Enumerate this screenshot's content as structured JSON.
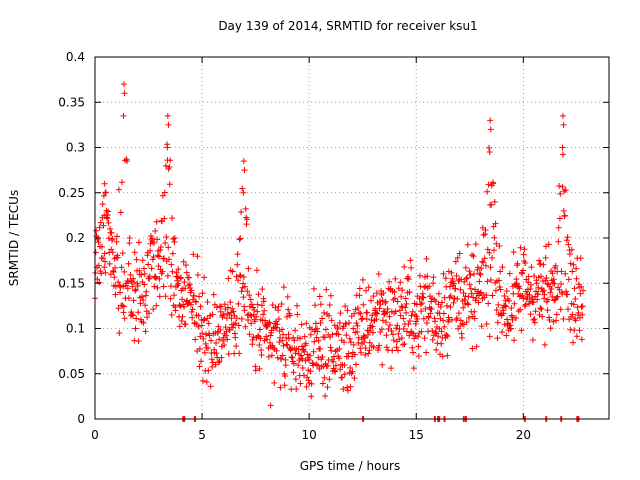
{
  "chart_data": {
    "type": "scatter",
    "title": "Day 139 of 2014, SRMTID for receiver ksu1",
    "xlabel": "GPS time / hours",
    "ylabel": "SRMTID / TECUs",
    "xlim": [
      0,
      24
    ],
    "ylim": [
      0,
      0.4
    ],
    "xticks": [
      0,
      5,
      10,
      15,
      20
    ],
    "xtick_labels": [
      "0",
      "5",
      "10",
      "15",
      "20"
    ],
    "yticks": [
      0,
      0.05,
      0.1,
      0.15,
      0.2,
      0.25,
      0.3,
      0.35,
      0.4
    ],
    "ytick_labels": [
      "0",
      "0.05",
      "0.1",
      "0.15",
      "0.2",
      "0.25",
      "0.3",
      "0.35",
      "0.4"
    ],
    "grid": true,
    "marker": "+",
    "series_color": "#ff0000",
    "series": [
      {
        "name": "ksu1",
        "trend": [
          [
            0.0,
            0.17
          ],
          [
            0.5,
            0.19
          ],
          [
            1.0,
            0.14
          ],
          [
            1.5,
            0.15
          ],
          [
            2.0,
            0.13
          ],
          [
            2.5,
            0.16
          ],
          [
            3.0,
            0.18
          ],
          [
            3.5,
            0.16
          ],
          [
            4.0,
            0.13
          ],
          [
            4.5,
            0.14
          ],
          [
            5.0,
            0.1
          ],
          [
            5.5,
            0.09
          ],
          [
            6.0,
            0.1
          ],
          [
            6.5,
            0.12
          ],
          [
            7.0,
            0.13
          ],
          [
            7.5,
            0.1
          ],
          [
            8.0,
            0.085
          ],
          [
            8.5,
            0.09
          ],
          [
            9.0,
            0.08
          ],
          [
            9.5,
            0.075
          ],
          [
            10.0,
            0.07
          ],
          [
            10.5,
            0.085
          ],
          [
            11.0,
            0.08
          ],
          [
            11.5,
            0.075
          ],
          [
            12.0,
            0.08
          ],
          [
            12.5,
            0.1
          ],
          [
            13.0,
            0.11
          ],
          [
            13.5,
            0.12
          ],
          [
            14.0,
            0.11
          ],
          [
            14.5,
            0.12
          ],
          [
            15.0,
            0.11
          ],
          [
            15.5,
            0.13
          ],
          [
            16.0,
            0.11
          ],
          [
            16.5,
            0.13
          ],
          [
            17.0,
            0.14
          ],
          [
            17.5,
            0.13
          ],
          [
            18.0,
            0.14
          ],
          [
            18.5,
            0.15
          ],
          [
            19.0,
            0.13
          ],
          [
            19.5,
            0.12
          ],
          [
            20.0,
            0.15
          ],
          [
            20.5,
            0.14
          ],
          [
            21.0,
            0.14
          ],
          [
            21.5,
            0.13
          ],
          [
            22.0,
            0.15
          ],
          [
            22.5,
            0.13
          ],
          [
            22.8,
            0.12
          ]
        ],
        "bursts": [
          {
            "x": 0.45,
            "peak": 0.26
          },
          {
            "x": 1.35,
            "peak": 0.37
          },
          {
            "x": 3.4,
            "peak": 0.335
          },
          {
            "x": 6.95,
            "peak": 0.285
          },
          {
            "x": 18.45,
            "peak": 0.33
          },
          {
            "x": 21.85,
            "peak": 0.335
          }
        ],
        "min_point": [
          8.2,
          0.015
        ],
        "zero_points": [
          4.1,
          4.15,
          4.65,
          12.5,
          15.85,
          16.0,
          16.05,
          16.3,
          17.2,
          17.3,
          20.05,
          21.05,
          21.75,
          22.5,
          22.55
        ]
      }
    ]
  }
}
